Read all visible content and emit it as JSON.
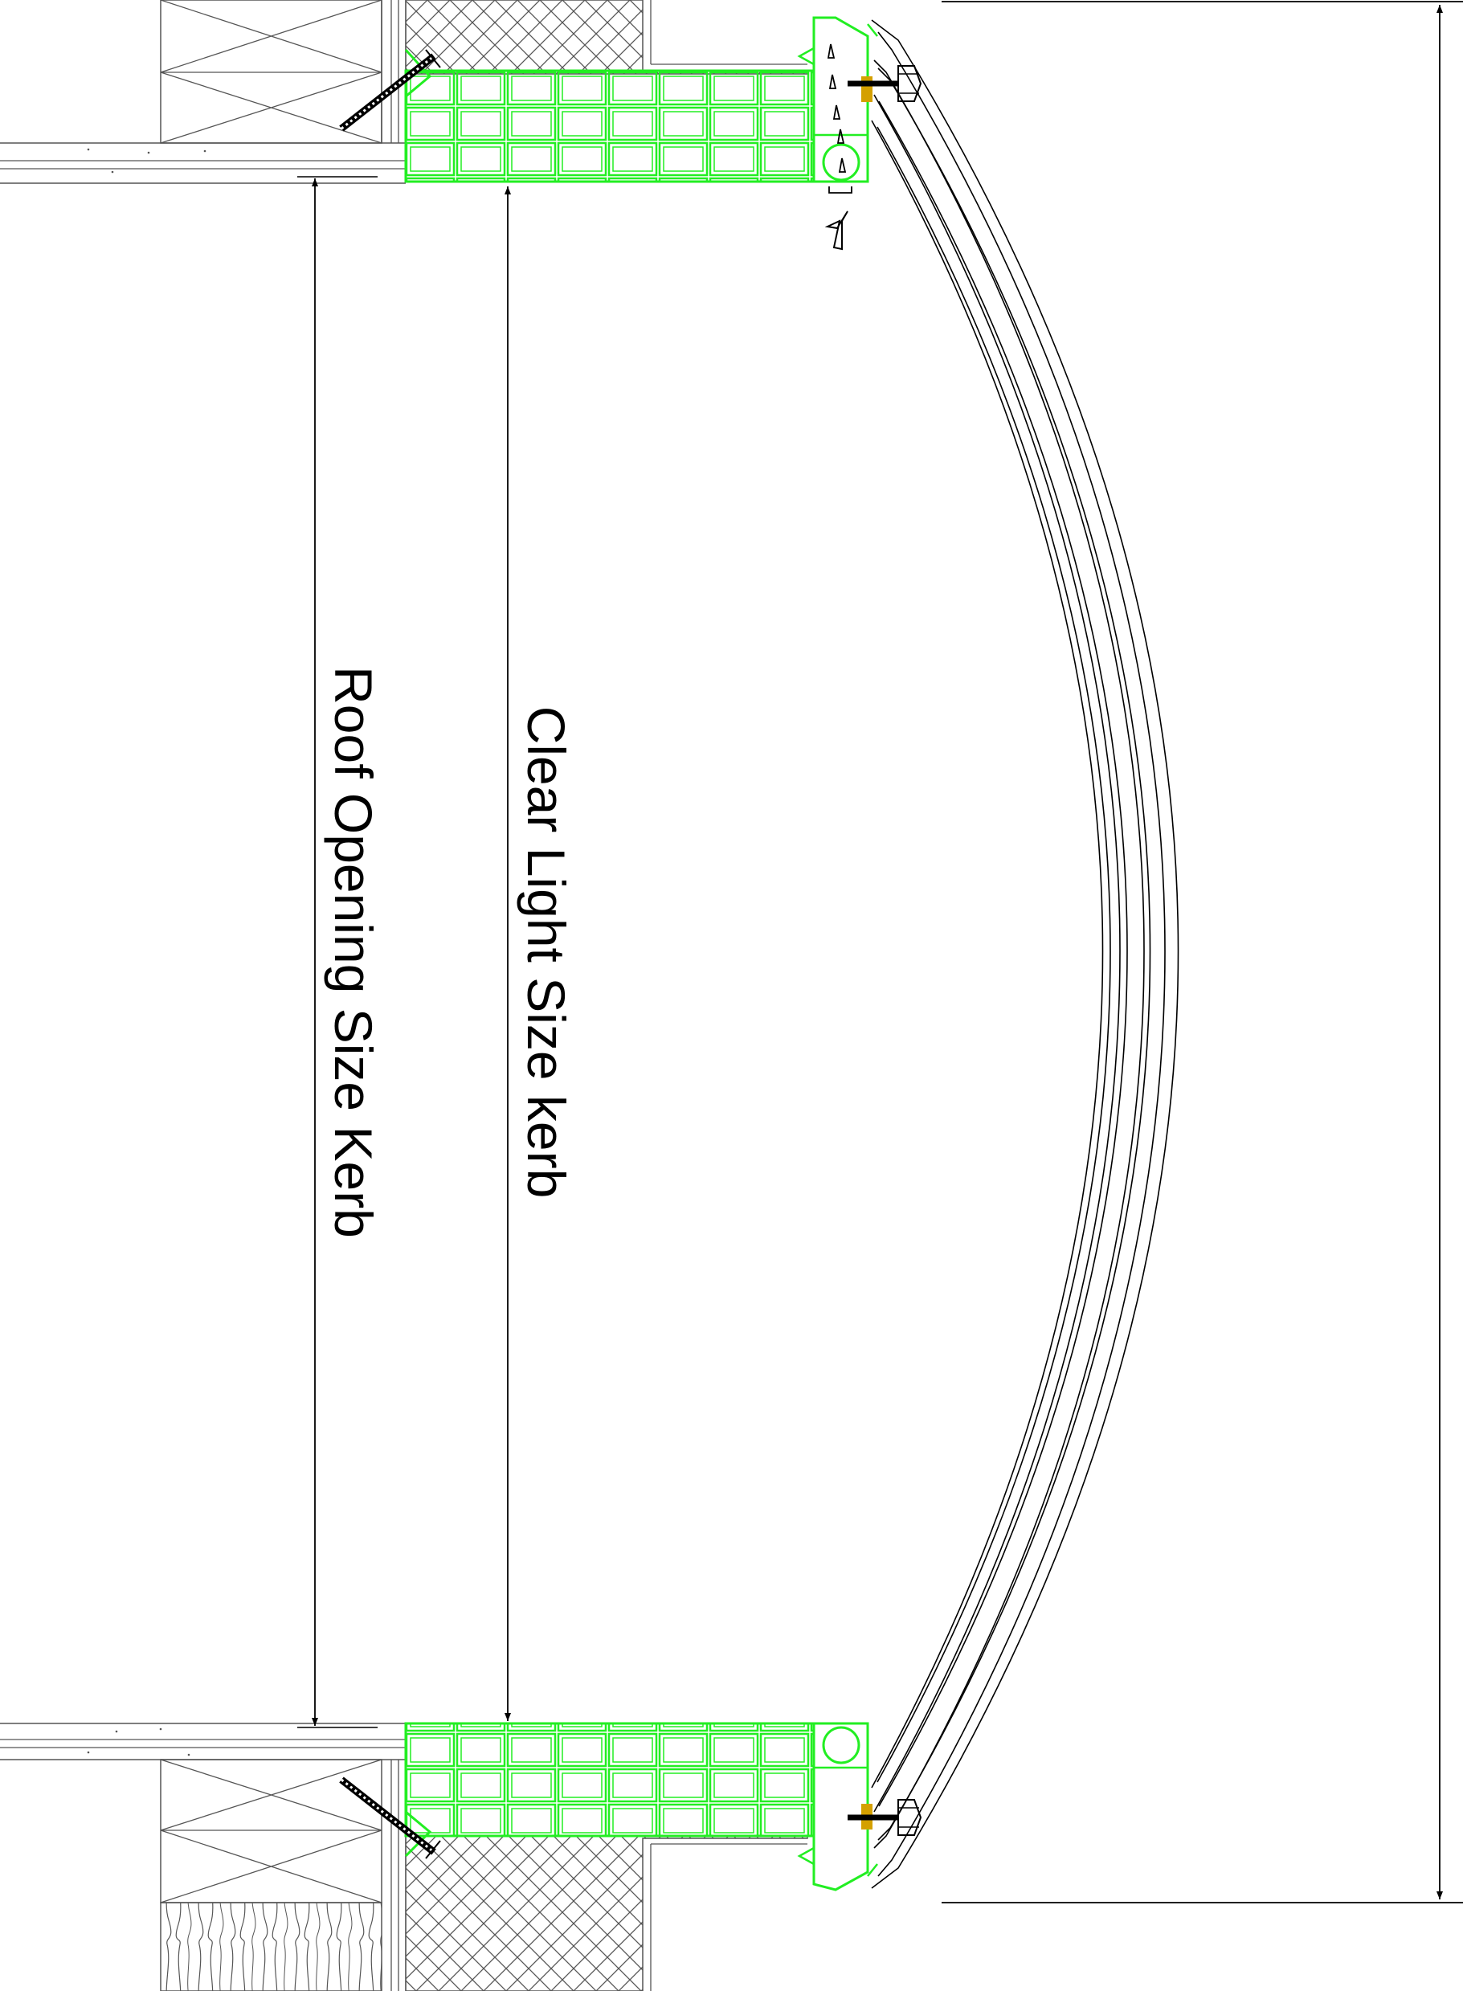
{
  "labels": {
    "roof_opening": "Roof Opening Size Kerb",
    "clear_light": "Clear Light Size kerb"
  },
  "colors": {
    "background": "#ffffff",
    "line": "#000000",
    "grey": "#555555",
    "kerb_profile": "#22ee22",
    "gasket": "#d4a000"
  },
  "icons": [
    "screw-icon",
    "fixing-bolt-icon",
    "vent-arrow-icon",
    "hatch-pattern",
    "wood-grain-pattern"
  ]
}
